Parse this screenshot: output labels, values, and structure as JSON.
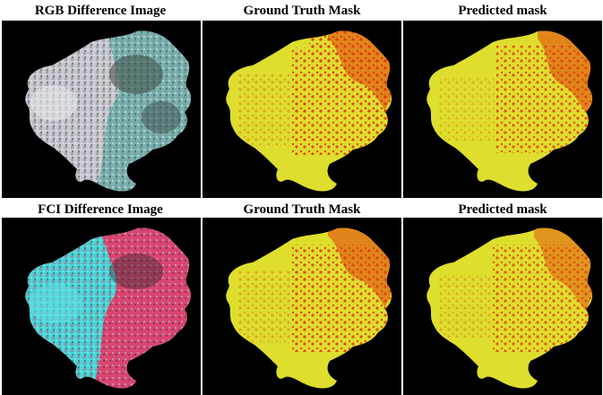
{
  "rows": [
    {
      "titles": [
        "RGB Difference Image",
        "Ground Truth Mask",
        "Predicted mask"
      ]
    },
    {
      "titles": [
        "FCI Difference Image",
        "Ground Truth Mask",
        "Predicted mask"
      ]
    }
  ],
  "colors": {
    "background": "#000000",
    "mask_unchanged": "#dede2e",
    "mask_changed": "#e23c0c",
    "rgb_tone_light": "#c9c7cf",
    "rgb_tone_dark": "#3c4a44",
    "rgb_tone_teal": "#77b2b0",
    "fci_tone_cyan": "#49d4d6",
    "fci_tone_red": "#d94671",
    "fci_tone_dark": "#3b2a30"
  }
}
